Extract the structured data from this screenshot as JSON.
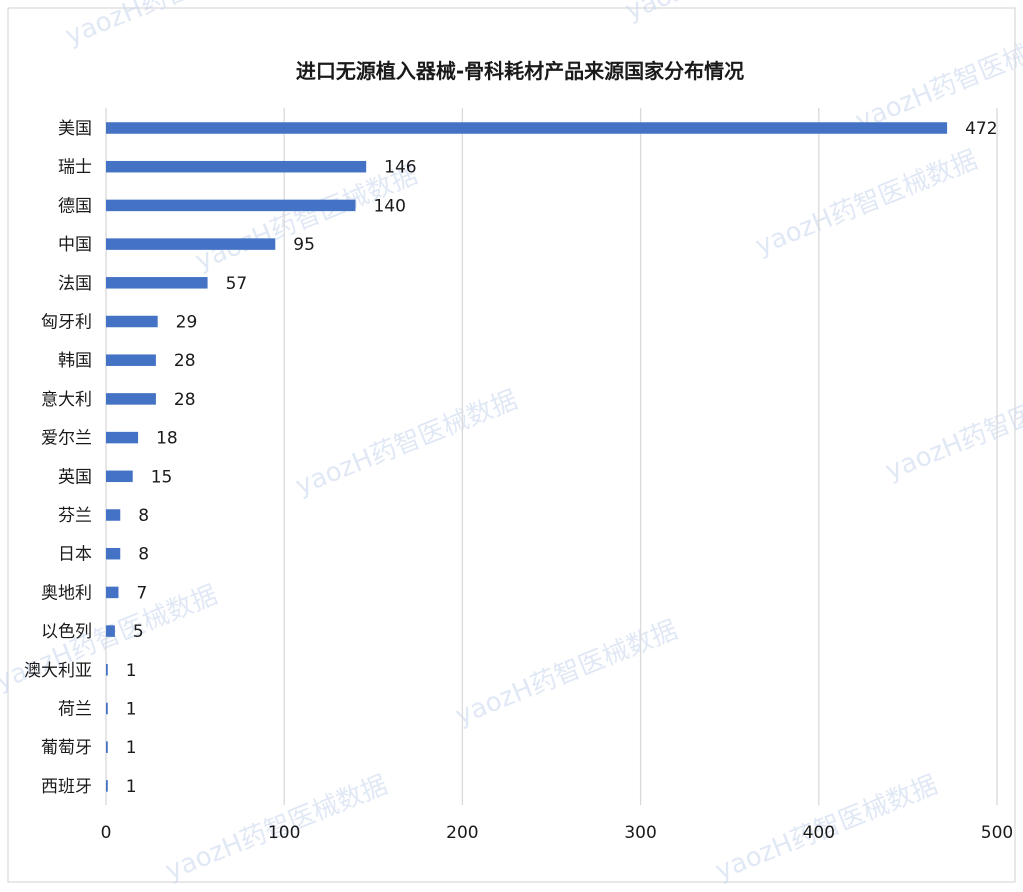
{
  "chart_data": {
    "type": "bar",
    "orientation": "horizontal",
    "title": "进口无源植入器械-骨科耗材产品来源国家分布情况",
    "categories": [
      "美国",
      "瑞士",
      "德国",
      "中国",
      "法国",
      "匈牙利",
      "韩国",
      "意大利",
      "爱尔兰",
      "英国",
      "芬兰",
      "日本",
      "奥地利",
      "以色列",
      "澳大利亚",
      "荷兰",
      "葡萄牙",
      "西班牙"
    ],
    "values": [
      472,
      146,
      140,
      95,
      57,
      29,
      28,
      28,
      18,
      15,
      8,
      8,
      7,
      5,
      1,
      1,
      1,
      1
    ],
    "xlim": [
      0,
      500
    ],
    "xticks": [
      0,
      100,
      200,
      300,
      400,
      500
    ],
    "grid": "vertical",
    "bar_color": "#4472C4"
  },
  "watermark": "yaozH药智医械数据"
}
